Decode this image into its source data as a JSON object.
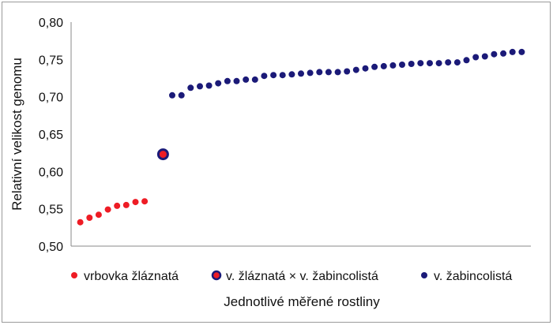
{
  "chart_data": {
    "type": "scatter",
    "title": "",
    "xlabel": "Jednotlivé měřené rostliny",
    "ylabel": "Relativní velikost genomu",
    "ylim": [
      0.5,
      0.8
    ],
    "yticks": [
      "0,50",
      "0,55",
      "0,60",
      "0,65",
      "0,70",
      "0,75",
      "0,80"
    ],
    "grid": false,
    "legend_position": "bottom",
    "colors": {
      "red": "#ee1c25",
      "navy": "#1b1a78"
    },
    "series": [
      {
        "name": "vrbovka žláznatá",
        "color": "#ee1c25",
        "x": [
          1,
          2,
          3,
          4,
          5,
          6,
          7,
          8
        ],
        "y": [
          0.532,
          0.538,
          0.542,
          0.549,
          0.554,
          0.555,
          0.559,
          0.56
        ]
      },
      {
        "name": "v. žláznatá × v. žabincolistá",
        "color": "#1b1a78",
        "fill": "#ee1c25",
        "x": [
          10
        ],
        "y": [
          0.623
        ]
      },
      {
        "name": "v. žabincolistá",
        "color": "#1b1a78",
        "x": [
          11,
          12,
          13,
          14,
          15,
          16,
          17,
          18,
          19,
          20,
          21,
          22,
          23,
          24,
          25,
          26,
          27,
          28,
          29,
          30,
          31,
          32,
          33,
          34,
          35,
          36,
          37,
          38,
          39,
          40,
          41,
          42,
          43,
          44,
          45,
          46,
          47,
          48,
          49
        ],
        "y": [
          0.702,
          0.702,
          0.712,
          0.714,
          0.715,
          0.718,
          0.721,
          0.721,
          0.723,
          0.723,
          0.728,
          0.729,
          0.729,
          0.73,
          0.731,
          0.732,
          0.733,
          0.733,
          0.733,
          0.734,
          0.736,
          0.738,
          0.74,
          0.741,
          0.742,
          0.743,
          0.744,
          0.745,
          0.745,
          0.745,
          0.746,
          0.746,
          0.749,
          0.753,
          0.754,
          0.757,
          0.758,
          0.76,
          0.76
        ]
      }
    ]
  }
}
